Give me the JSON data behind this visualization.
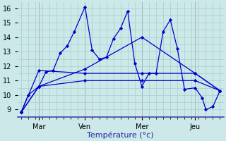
{
  "background_color": "#cce8e8",
  "grid_color": "#aacccc",
  "line_color": "#0000cc",
  "xlabel": "Température (°c)",
  "xlabel_fontsize": 8,
  "tick_fontsize": 7,
  "ylim": [
    8.5,
    16.4
  ],
  "xlim": [
    -0.5,
    28.5
  ],
  "yticks": [
    9,
    10,
    11,
    12,
    13,
    14,
    15,
    16
  ],
  "xtick_positions": [
    2.5,
    9,
    17,
    24.5
  ],
  "xtick_labels": [
    "Mar",
    "Ven",
    "Mer",
    "Jeu"
  ],
  "vlines": [
    2.5,
    9,
    17,
    24.5
  ],
  "series": [
    {
      "x": [
        0,
        1,
        2.5,
        3.5,
        4.5,
        5.5,
        6.5,
        7.5,
        9,
        10,
        11,
        12,
        13,
        14,
        15,
        16,
        17,
        18,
        19,
        20,
        21,
        22,
        23,
        24.5,
        25.5,
        26,
        27,
        28
      ],
      "y": [
        8.8,
        10.0,
        10.6,
        11.6,
        11.7,
        12.9,
        13.4,
        14.4,
        16.1,
        13.1,
        12.5,
        12.6,
        13.9,
        14.6,
        15.8,
        12.2,
        10.6,
        11.5,
        11.5,
        14.4,
        15.2,
        13.2,
        10.4,
        10.5,
        9.8,
        9.0,
        9.2,
        10.3
      ]
    },
    {
      "x": [
        0,
        2.5,
        9,
        17,
        24.5,
        28
      ],
      "y": [
        8.8,
        10.6,
        11.0,
        11.0,
        11.0,
        10.3
      ]
    },
    {
      "x": [
        0,
        2.5,
        9,
        17,
        24.5,
        28
      ],
      "y": [
        8.8,
        11.7,
        11.5,
        11.5,
        11.5,
        10.3
      ]
    },
    {
      "x": [
        0,
        2.5,
        9,
        17,
        24.5,
        28
      ],
      "y": [
        8.8,
        10.6,
        11.8,
        14.0,
        11.5,
        10.3
      ]
    }
  ]
}
